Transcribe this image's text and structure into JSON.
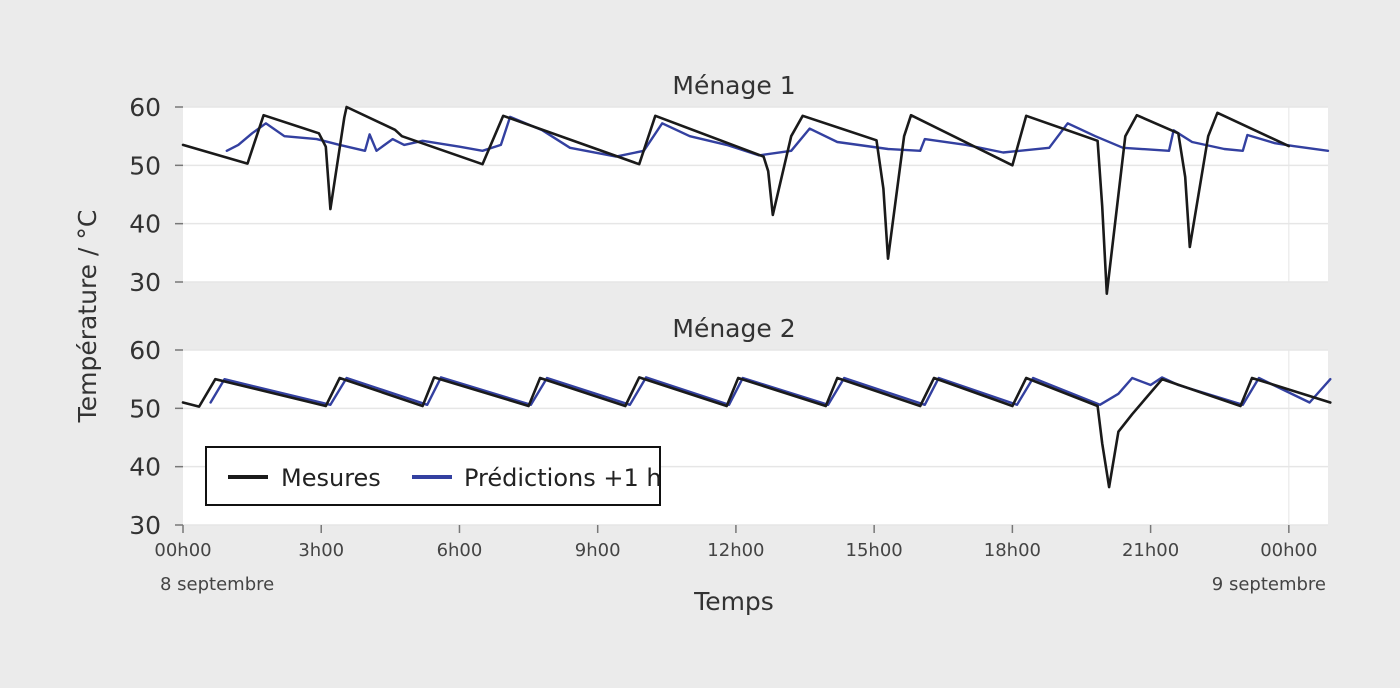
{
  "chart_data": {
    "type": "line",
    "xlabel": "Temps",
    "ylabel": "Température / °C",
    "x_ticks": [
      "00h00",
      "3h00",
      "6h00",
      "9h00",
      "12h00",
      "15h00",
      "18h00",
      "21h00",
      "00h00"
    ],
    "x_tick_hours": [
      0,
      3,
      6,
      9,
      12,
      15,
      18,
      21,
      24
    ],
    "date_labels": {
      "start": "8 septembre",
      "end": "9 septembre"
    },
    "xlim_hours": [
      0,
      24.85
    ],
    "legend": {
      "placement": "bottom-left of lower panel",
      "entries": [
        "Mesures",
        "Prédictions +1 h"
      ]
    },
    "colors": {
      "Mesures": "#1a1a1a",
      "Prédictions +1 h": "#3340a0"
    },
    "panels": [
      {
        "title": "Ménage 1",
        "ylim": [
          30,
          60
        ],
        "yticks": [
          "60",
          "50",
          "40",
          "30"
        ],
        "series": [
          {
            "name": "Mesures",
            "points": [
              [
                0,
                53.5
              ],
              [
                1.4,
                50.3
              ],
              [
                1.75,
                58.6
              ],
              [
                2.95,
                55.5
              ],
              [
                3.1,
                53.2
              ],
              [
                3.2,
                42.5
              ],
              [
                3.5,
                58.2
              ],
              [
                3.55,
                60
              ],
              [
                4.6,
                56.1
              ],
              [
                4.75,
                55
              ],
              [
                6.5,
                50.2
              ],
              [
                6.95,
                58.5
              ],
              [
                9.9,
                50.2
              ],
              [
                10.25,
                58.5
              ],
              [
                12.6,
                51.5
              ],
              [
                12.7,
                49
              ],
              [
                12.8,
                41.5
              ],
              [
                13.2,
                55
              ],
              [
                13.45,
                58.5
              ],
              [
                15.05,
                54.3
              ],
              [
                15.2,
                46
              ],
              [
                15.3,
                34
              ],
              [
                15.65,
                55
              ],
              [
                15.8,
                58.6
              ],
              [
                18.0,
                50
              ],
              [
                18.3,
                58.5
              ],
              [
                19.85,
                54.2
              ],
              [
                19.95,
                43
              ],
              [
                20.05,
                28
              ],
              [
                20.45,
                55
              ],
              [
                20.7,
                58.6
              ],
              [
                21.6,
                55.5
              ],
              [
                21.75,
                48
              ],
              [
                21.85,
                36
              ],
              [
                22.25,
                55
              ],
              [
                22.45,
                59
              ],
              [
                24.0,
                53.3
              ]
            ]
          },
          {
            "name": "Prédictions +1 h",
            "points": [
              [
                0.95,
                52.5
              ],
              [
                1.2,
                53.5
              ],
              [
                1.5,
                55.5
              ],
              [
                1.8,
                57.2
              ],
              [
                2.2,
                55
              ],
              [
                2.9,
                54.5
              ],
              [
                3.4,
                53.5
              ],
              [
                3.95,
                52.5
              ],
              [
                4.05,
                55.3
              ],
              [
                4.2,
                52.5
              ],
              [
                4.55,
                54.5
              ],
              [
                4.8,
                53.5
              ],
              [
                5.2,
                54.2
              ],
              [
                6.0,
                53.2
              ],
              [
                6.5,
                52.5
              ],
              [
                6.9,
                53.5
              ],
              [
                7.1,
                58.3
              ],
              [
                7.8,
                56
              ],
              [
                8.4,
                53
              ],
              [
                9.4,
                51.5
              ],
              [
                10.0,
                52.5
              ],
              [
                10.4,
                57.2
              ],
              [
                11.0,
                55
              ],
              [
                11.8,
                53.5
              ],
              [
                12.5,
                51.7
              ],
              [
                13.2,
                52.5
              ],
              [
                13.6,
                56.3
              ],
              [
                14.2,
                54
              ],
              [
                15.3,
                52.8
              ],
              [
                16.0,
                52.5
              ],
              [
                16.1,
                54.5
              ],
              [
                17.0,
                53.5
              ],
              [
                17.8,
                52.2
              ],
              [
                18.8,
                53
              ],
              [
                19.2,
                57.2
              ],
              [
                19.8,
                55
              ],
              [
                20.4,
                53
              ],
              [
                21.4,
                52.5
              ],
              [
                21.5,
                56
              ],
              [
                21.9,
                54
              ],
              [
                22.6,
                52.8
              ],
              [
                23.0,
                52.5
              ],
              [
                23.1,
                55.2
              ],
              [
                23.7,
                53.8
              ],
              [
                24.1,
                53.3
              ],
              [
                24.85,
                52.5
              ]
            ]
          }
        ]
      },
      {
        "title": "Ménage 2",
        "ylim": [
          30,
          60
        ],
        "yticks": [
          "60",
          "50",
          "40",
          "30"
        ],
        "series": [
          {
            "name": "Mesures",
            "points": [
              [
                0,
                51
              ],
              [
                0.35,
                50.3
              ],
              [
                0.7,
                55
              ],
              [
                3.1,
                50.4
              ],
              [
                3.4,
                55.2
              ],
              [
                5.2,
                50.4
              ],
              [
                5.45,
                55.3
              ],
              [
                7.5,
                50.4
              ],
              [
                7.75,
                55.2
              ],
              [
                9.6,
                50.4
              ],
              [
                9.9,
                55.3
              ],
              [
                11.8,
                50.4
              ],
              [
                12.05,
                55.2
              ],
              [
                13.95,
                50.4
              ],
              [
                14.2,
                55.2
              ],
              [
                16.0,
                50.4
              ],
              [
                16.3,
                55.2
              ],
              [
                18.0,
                50.4
              ],
              [
                18.3,
                55.2
              ],
              [
                19.85,
                50.4
              ],
              [
                19.95,
                44
              ],
              [
                20.1,
                36.5
              ],
              [
                20.3,
                46
              ],
              [
                20.6,
                49
              ],
              [
                21.25,
                55
              ],
              [
                22.95,
                50.4
              ],
              [
                23.2,
                55.2
              ],
              [
                24.9,
                51
              ]
            ]
          },
          {
            "name": "Prédictions +1 h",
            "points": [
              [
                0.6,
                51
              ],
              [
                0.9,
                55
              ],
              [
                3.2,
                50.6
              ],
              [
                3.55,
                55.2
              ],
              [
                5.3,
                50.6
              ],
              [
                5.6,
                55.3
              ],
              [
                7.55,
                50.6
              ],
              [
                7.9,
                55.2
              ],
              [
                9.7,
                50.6
              ],
              [
                10.05,
                55.3
              ],
              [
                11.85,
                50.6
              ],
              [
                12.15,
                55.2
              ],
              [
                14.0,
                50.6
              ],
              [
                14.35,
                55.2
              ],
              [
                16.1,
                50.6
              ],
              [
                16.4,
                55.2
              ],
              [
                18.1,
                50.6
              ],
              [
                18.45,
                55.2
              ],
              [
                19.9,
                50.6
              ],
              [
                20.3,
                52.5
              ],
              [
                20.6,
                55.2
              ],
              [
                21.0,
                54
              ],
              [
                21.25,
                55.3
              ],
              [
                21.6,
                54
              ],
              [
                23.0,
                50.6
              ],
              [
                23.35,
                55.2
              ],
              [
                24.45,
                51
              ],
              [
                24.9,
                55
              ]
            ]
          }
        ]
      }
    ]
  }
}
